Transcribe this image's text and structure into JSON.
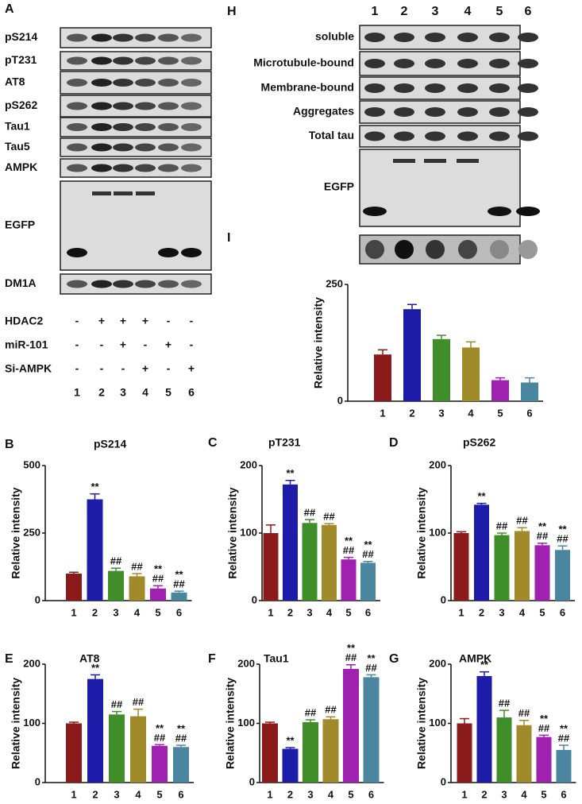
{
  "blot_a": {
    "letter": "A",
    "rows": [
      "pS214",
      "pT231",
      "AT8",
      "pS262",
      "Tau1",
      "Tau5",
      "AMPK",
      "EGFP",
      "DM1A"
    ],
    "treatments": [
      {
        "label": "HDAC2",
        "signs": [
          "-",
          "+",
          "+",
          "+",
          "-",
          "-"
        ]
      },
      {
        "label": "miR-101",
        "signs": [
          "-",
          "-",
          "+",
          "-",
          "+",
          "-"
        ]
      },
      {
        "label": "Si-AMPK",
        "signs": [
          "-",
          "-",
          "-",
          "+",
          "-",
          "+"
        ]
      }
    ],
    "lanes": [
      "1",
      "2",
      "3",
      "4",
      "5",
      "6"
    ]
  },
  "blot_h": {
    "letter": "H",
    "lanes": [
      "1",
      "2",
      "3",
      "4",
      "5",
      "6"
    ],
    "rows": [
      "soluble",
      "Microtubule-bound",
      "Membrane-bound",
      "Aggregates",
      "Total tau",
      "EGFP"
    ]
  },
  "chart_data": [
    {
      "type": "bar",
      "letter": "I",
      "y_label": "Relative intensity",
      "categories": [
        "1",
        "2",
        "3",
        "4",
        "5",
        "6"
      ],
      "values": [
        100,
        197,
        133,
        115,
        45,
        40
      ],
      "errors": [
        10,
        10,
        8,
        12,
        5,
        10
      ],
      "colors": [
        "#8b1a1a",
        "#1c1ca8",
        "#3f8e2a",
        "#a08a2a",
        "#a020b0",
        "#4a86a0"
      ],
      "ylim": [
        0,
        250
      ],
      "yticks": [
        0,
        250
      ]
    },
    {
      "type": "bar",
      "letter": "B",
      "title": "pS214",
      "y_label": "Relative intensity",
      "categories": [
        "1",
        "2",
        "3",
        "4",
        "5",
        "6"
      ],
      "values": [
        100,
        375,
        110,
        90,
        45,
        30
      ],
      "errors": [
        5,
        20,
        10,
        10,
        10,
        5
      ],
      "significance": [
        null,
        [
          "**"
        ],
        [
          "##"
        ],
        [
          "##"
        ],
        [
          "**",
          "##"
        ],
        [
          "**",
          "##"
        ]
      ],
      "colors": [
        "#8b1a1a",
        "#1c1ca8",
        "#3f8e2a",
        "#a08a2a",
        "#a020b0",
        "#4a86a0"
      ],
      "ylim": [
        0,
        500
      ],
      "yticks": [
        0,
        250,
        500
      ]
    },
    {
      "type": "bar",
      "letter": "C",
      "title": "pT231",
      "y_label": "Relative intensity",
      "categories": [
        "1",
        "2",
        "3",
        "4",
        "5",
        "6"
      ],
      "values": [
        100,
        172,
        115,
        112,
        61,
        56
      ],
      "errors": [
        12,
        6,
        5,
        2,
        3,
        2
      ],
      "significance": [
        null,
        [
          "**"
        ],
        [
          "##"
        ],
        [
          "##"
        ],
        [
          "**",
          "##"
        ],
        [
          "**",
          "##"
        ]
      ],
      "colors": [
        "#8b1a1a",
        "#1c1ca8",
        "#3f8e2a",
        "#a08a2a",
        "#a020b0",
        "#4a86a0"
      ],
      "ylim": [
        0,
        200
      ],
      "yticks": [
        0,
        100,
        200
      ]
    },
    {
      "type": "bar",
      "letter": "D",
      "title": "pS262",
      "y_label": "Relative intensity",
      "categories": [
        "1",
        "2",
        "3",
        "4",
        "5",
        "6"
      ],
      "values": [
        100,
        142,
        97,
        103,
        82,
        75
      ],
      "errors": [
        2,
        2,
        3,
        5,
        3,
        6
      ],
      "significance": [
        null,
        [
          "**"
        ],
        [
          "##"
        ],
        [
          "##"
        ],
        [
          "**",
          "##"
        ],
        [
          "**",
          "##"
        ]
      ],
      "colors": [
        "#8b1a1a",
        "#1c1ca8",
        "#3f8e2a",
        "#a08a2a",
        "#a020b0",
        "#4a86a0"
      ],
      "ylim": [
        0,
        200
      ],
      "yticks": [
        0,
        100,
        200
      ]
    },
    {
      "type": "bar",
      "letter": "E",
      "title": "AT8",
      "y_label": "Relative intensity",
      "categories": [
        "1",
        "2",
        "3",
        "4",
        "5",
        "6"
      ],
      "values": [
        100,
        175,
        115,
        112,
        62,
        60
      ],
      "errors": [
        2,
        7,
        5,
        12,
        2,
        3
      ],
      "significance": [
        null,
        [
          "**"
        ],
        [
          "##"
        ],
        [
          "##"
        ],
        [
          "**",
          "##"
        ],
        [
          "**",
          "##"
        ]
      ],
      "colors": [
        "#8b1a1a",
        "#1c1ca8",
        "#3f8e2a",
        "#a08a2a",
        "#a020b0",
        "#4a86a0"
      ],
      "ylim": [
        0,
        200
      ],
      "yticks": [
        0,
        100,
        200
      ]
    },
    {
      "type": "bar",
      "letter": "F",
      "title": "Tau1",
      "y_label": "Relative intensity",
      "categories": [
        "1",
        "2",
        "3",
        "4",
        "5",
        "6"
      ],
      "values": [
        100,
        57,
        102,
        107,
        192,
        178
      ],
      "errors": [
        2,
        2,
        4,
        4,
        7,
        4
      ],
      "significance": [
        null,
        [
          "**"
        ],
        [
          "##"
        ],
        [
          "##"
        ],
        [
          "**",
          "##"
        ],
        [
          "**",
          "##"
        ]
      ],
      "colors": [
        "#8b1a1a",
        "#1c1ca8",
        "#3f8e2a",
        "#a08a2a",
        "#a020b0",
        "#4a86a0"
      ],
      "ylim": [
        0,
        200
      ],
      "yticks": [
        0,
        100,
        200
      ]
    },
    {
      "type": "bar",
      "letter": "G",
      "title": "AMPK",
      "y_label": "Relative intensity",
      "categories": [
        "1",
        "2",
        "3",
        "4",
        "5",
        "6"
      ],
      "values": [
        100,
        180,
        110,
        97,
        77,
        55
      ],
      "errors": [
        8,
        7,
        12,
        8,
        3,
        8
      ],
      "significance": [
        null,
        [
          "**"
        ],
        [
          "##"
        ],
        [
          "##"
        ],
        [
          "**",
          "##"
        ],
        [
          "**",
          "##"
        ]
      ],
      "colors": [
        "#8b1a1a",
        "#1c1ca8",
        "#3f8e2a",
        "#a08a2a",
        "#a020b0",
        "#4a86a0"
      ],
      "ylim": [
        0,
        200
      ],
      "yticks": [
        0,
        100,
        200
      ]
    }
  ]
}
